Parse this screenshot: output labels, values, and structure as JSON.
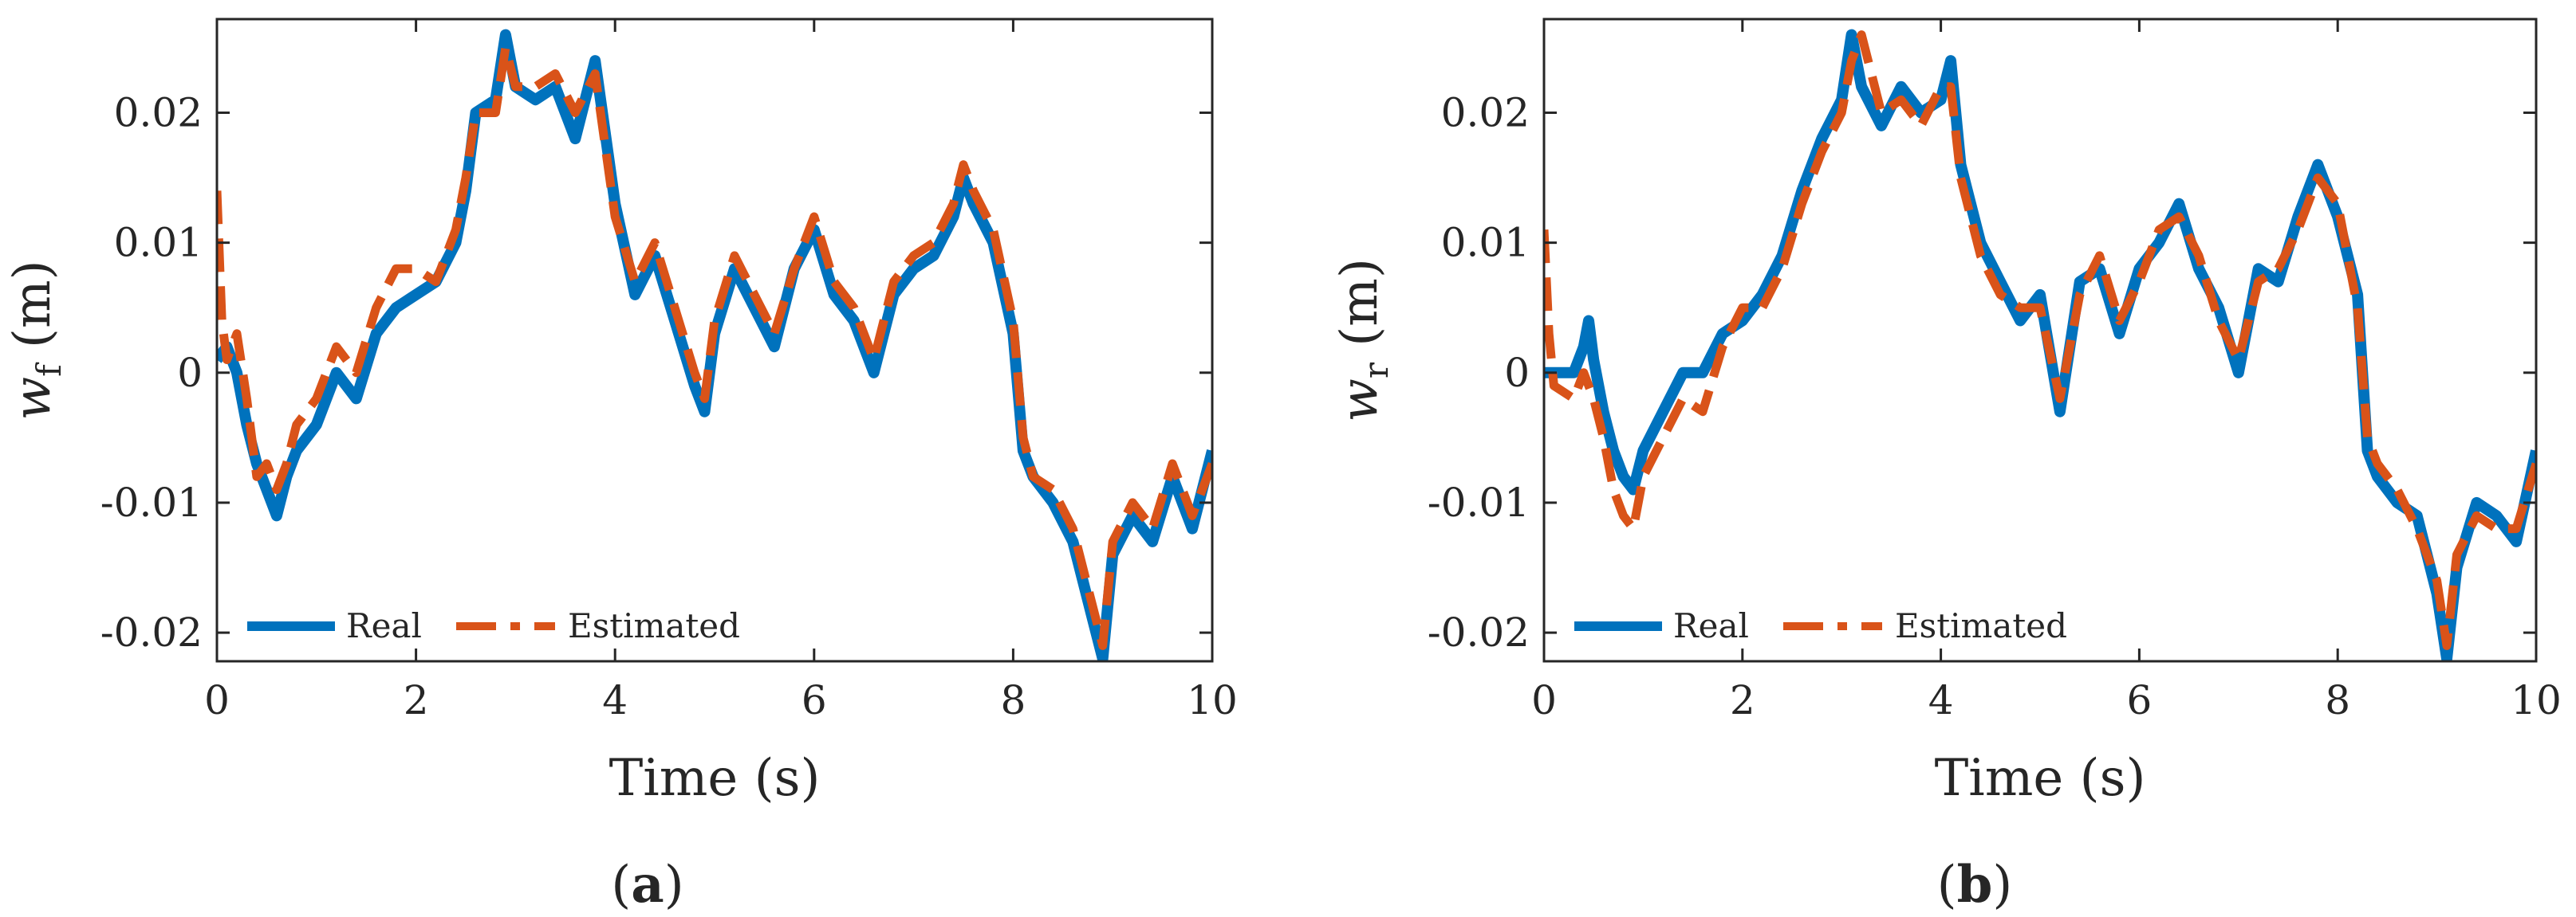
{
  "figure": {
    "panel_labels": [
      {
        "open": "(",
        "letter": "a",
        "close": ")"
      },
      {
        "open": "(",
        "letter": "b",
        "close": ")"
      }
    ]
  },
  "colors": {
    "real": "#0072BD",
    "estimated": "#D95319",
    "axis": "#262626"
  },
  "chart_data": [
    {
      "type": "line",
      "xlabel": "Time (s)",
      "ylabel": {
        "symbol": "w",
        "subscript": "f",
        "unit": "(m)"
      },
      "xlim": [
        0,
        10
      ],
      "ylim": [
        -0.0222,
        0.0272
      ],
      "xticks": [
        0,
        2,
        4,
        6,
        8,
        10
      ],
      "xtick_labels": [
        "0",
        "2",
        "4",
        "6",
        "8",
        "10"
      ],
      "yticks": [
        -0.02,
        -0.01,
        0,
        0.01,
        0.02
      ],
      "ytick_labels": [
        "-0.02",
        "-0.01",
        "0",
        "0.01",
        "0.02"
      ],
      "grid": false,
      "legend_position": "bottom-left",
      "series": [
        {
          "name": "Real",
          "style": "solid",
          "x": [
            0,
            0.1,
            0.2,
            0.3,
            0.4,
            0.5,
            0.6,
            0.7,
            0.8,
            1.0,
            1.2,
            1.4,
            1.6,
            1.8,
            2.0,
            2.2,
            2.4,
            2.5,
            2.6,
            2.8,
            2.9,
            3.0,
            3.2,
            3.4,
            3.6,
            3.8,
            4.0,
            4.2,
            4.4,
            4.6,
            4.8,
            4.9,
            5.0,
            5.2,
            5.4,
            5.6,
            5.8,
            6.0,
            6.2,
            6.4,
            6.6,
            6.8,
            7.0,
            7.2,
            7.4,
            7.5,
            7.6,
            7.8,
            8.0,
            8.1,
            8.2,
            8.4,
            8.6,
            8.8,
            8.9,
            9.0,
            9.2,
            9.4,
            9.6,
            9.8,
            10.0
          ],
          "y": [
            0.001,
            0.002,
            0.0,
            -0.004,
            -0.007,
            -0.009,
            -0.011,
            -0.008,
            -0.006,
            -0.004,
            0.0,
            -0.002,
            0.003,
            0.005,
            0.006,
            0.007,
            0.01,
            0.014,
            0.02,
            0.021,
            0.026,
            0.022,
            0.021,
            0.022,
            0.018,
            0.024,
            0.013,
            0.006,
            0.009,
            0.004,
            -0.001,
            -0.003,
            0.003,
            0.008,
            0.005,
            0.002,
            0.008,
            0.011,
            0.006,
            0.004,
            0.0,
            0.006,
            0.008,
            0.009,
            0.012,
            0.015,
            0.013,
            0.01,
            0.003,
            -0.006,
            -0.008,
            -0.01,
            -0.013,
            -0.019,
            -0.022,
            -0.014,
            -0.011,
            -0.013,
            -0.008,
            -0.012,
            -0.006
          ]
        },
        {
          "name": "Estimated",
          "style": "dashed",
          "x": [
            0,
            0.05,
            0.1,
            0.2,
            0.3,
            0.4,
            0.5,
            0.6,
            0.7,
            0.8,
            1.0,
            1.2,
            1.4,
            1.6,
            1.8,
            2.0,
            2.2,
            2.4,
            2.5,
            2.6,
            2.8,
            2.9,
            3.0,
            3.2,
            3.4,
            3.6,
            3.8,
            4.0,
            4.2,
            4.4,
            4.6,
            4.8,
            4.9,
            5.0,
            5.2,
            5.4,
            5.6,
            5.8,
            6.0,
            6.2,
            6.4,
            6.6,
            6.8,
            7.0,
            7.2,
            7.4,
            7.5,
            7.6,
            7.8,
            8.0,
            8.1,
            8.2,
            8.4,
            8.6,
            8.8,
            8.9,
            9.0,
            9.2,
            9.4,
            9.6,
            9.8,
            10.0
          ],
          "y": [
            0.014,
            0.004,
            0.001,
            0.003,
            -0.002,
            -0.008,
            -0.007,
            -0.009,
            -0.007,
            -0.004,
            -0.002,
            0.002,
            0.0,
            0.005,
            0.008,
            0.008,
            0.007,
            0.011,
            0.015,
            0.02,
            0.02,
            0.025,
            0.022,
            0.022,
            0.023,
            0.02,
            0.023,
            0.012,
            0.007,
            0.01,
            0.005,
            0.0,
            -0.002,
            0.004,
            0.009,
            0.006,
            0.003,
            0.008,
            0.012,
            0.007,
            0.005,
            0.001,
            0.007,
            0.009,
            0.01,
            0.013,
            0.016,
            0.014,
            0.011,
            0.004,
            -0.005,
            -0.008,
            -0.009,
            -0.012,
            -0.018,
            -0.021,
            -0.013,
            -0.01,
            -0.012,
            -0.007,
            -0.011,
            -0.007
          ]
        }
      ]
    },
    {
      "type": "line",
      "xlabel": "Time (s)",
      "ylabel": {
        "symbol": "w",
        "subscript": "r",
        "unit": "(m)"
      },
      "xlim": [
        0,
        10
      ],
      "ylim": [
        -0.0222,
        0.0272
      ],
      "xticks": [
        0,
        2,
        4,
        6,
        8,
        10
      ],
      "xtick_labels": [
        "0",
        "2",
        "4",
        "6",
        "8",
        "10"
      ],
      "yticks": [
        -0.02,
        -0.01,
        0,
        0.01,
        0.02
      ],
      "ytick_labels": [
        "-0.02",
        "-0.01",
        "0",
        "0.01",
        "0.02"
      ],
      "grid": false,
      "legend_position": "bottom-left",
      "series": [
        {
          "name": "Real",
          "style": "solid",
          "x": [
            0,
            0.3,
            0.4,
            0.45,
            0.5,
            0.6,
            0.7,
            0.8,
            0.9,
            1.0,
            1.2,
            1.4,
            1.6,
            1.8,
            2.0,
            2.2,
            2.4,
            2.6,
            2.8,
            3.0,
            3.1,
            3.2,
            3.4,
            3.6,
            3.8,
            4.0,
            4.1,
            4.2,
            4.4,
            4.6,
            4.8,
            5.0,
            5.2,
            5.4,
            5.6,
            5.8,
            6.0,
            6.2,
            6.4,
            6.6,
            6.8,
            7.0,
            7.2,
            7.4,
            7.6,
            7.8,
            8.0,
            8.2,
            8.3,
            8.4,
            8.6,
            8.8,
            9.0,
            9.1,
            9.2,
            9.4,
            9.6,
            9.8,
            10.0
          ],
          "y": [
            0.0,
            0.0,
            0.002,
            0.004,
            0.001,
            -0.003,
            -0.006,
            -0.008,
            -0.009,
            -0.006,
            -0.003,
            0.0,
            0.0,
            0.003,
            0.004,
            0.006,
            0.009,
            0.014,
            0.018,
            0.021,
            0.026,
            0.022,
            0.019,
            0.022,
            0.02,
            0.021,
            0.024,
            0.016,
            0.01,
            0.007,
            0.004,
            0.006,
            -0.003,
            0.007,
            0.008,
            0.003,
            0.008,
            0.01,
            0.013,
            0.008,
            0.005,
            0.0,
            0.008,
            0.007,
            0.012,
            0.016,
            0.012,
            0.006,
            -0.006,
            -0.008,
            -0.01,
            -0.011,
            -0.017,
            -0.022,
            -0.015,
            -0.01,
            -0.011,
            -0.013,
            -0.006
          ]
        },
        {
          "name": "Estimated",
          "style": "dashed",
          "x": [
            0,
            0.05,
            0.1,
            0.3,
            0.4,
            0.5,
            0.6,
            0.7,
            0.8,
            0.9,
            1.0,
            1.2,
            1.4,
            1.6,
            1.8,
            2.0,
            2.2,
            2.4,
            2.6,
            2.8,
            3.0,
            3.1,
            3.2,
            3.4,
            3.6,
            3.8,
            4.0,
            4.1,
            4.2,
            4.4,
            4.6,
            4.8,
            5.0,
            5.2,
            5.4,
            5.6,
            5.8,
            6.0,
            6.2,
            6.4,
            6.6,
            6.8,
            7.0,
            7.2,
            7.4,
            7.6,
            7.8,
            8.0,
            8.2,
            8.3,
            8.4,
            8.6,
            8.8,
            9.0,
            9.1,
            9.2,
            9.4,
            9.6,
            9.8,
            10.0
          ],
          "y": [
            0.011,
            0.003,
            -0.001,
            -0.002,
            0.0,
            -0.002,
            -0.005,
            -0.009,
            -0.011,
            -0.012,
            -0.008,
            -0.005,
            -0.002,
            -0.003,
            0.002,
            0.005,
            0.005,
            0.008,
            0.013,
            0.017,
            0.02,
            0.024,
            0.026,
            0.02,
            0.021,
            0.019,
            0.022,
            0.022,
            0.015,
            0.009,
            0.006,
            0.005,
            0.005,
            -0.002,
            0.006,
            0.009,
            0.004,
            0.007,
            0.011,
            0.012,
            0.009,
            0.004,
            0.001,
            0.007,
            0.008,
            0.011,
            0.015,
            0.013,
            0.005,
            -0.005,
            -0.007,
            -0.009,
            -0.012,
            -0.016,
            -0.021,
            -0.014,
            -0.011,
            -0.012,
            -0.012,
            -0.007
          ]
        }
      ]
    }
  ]
}
